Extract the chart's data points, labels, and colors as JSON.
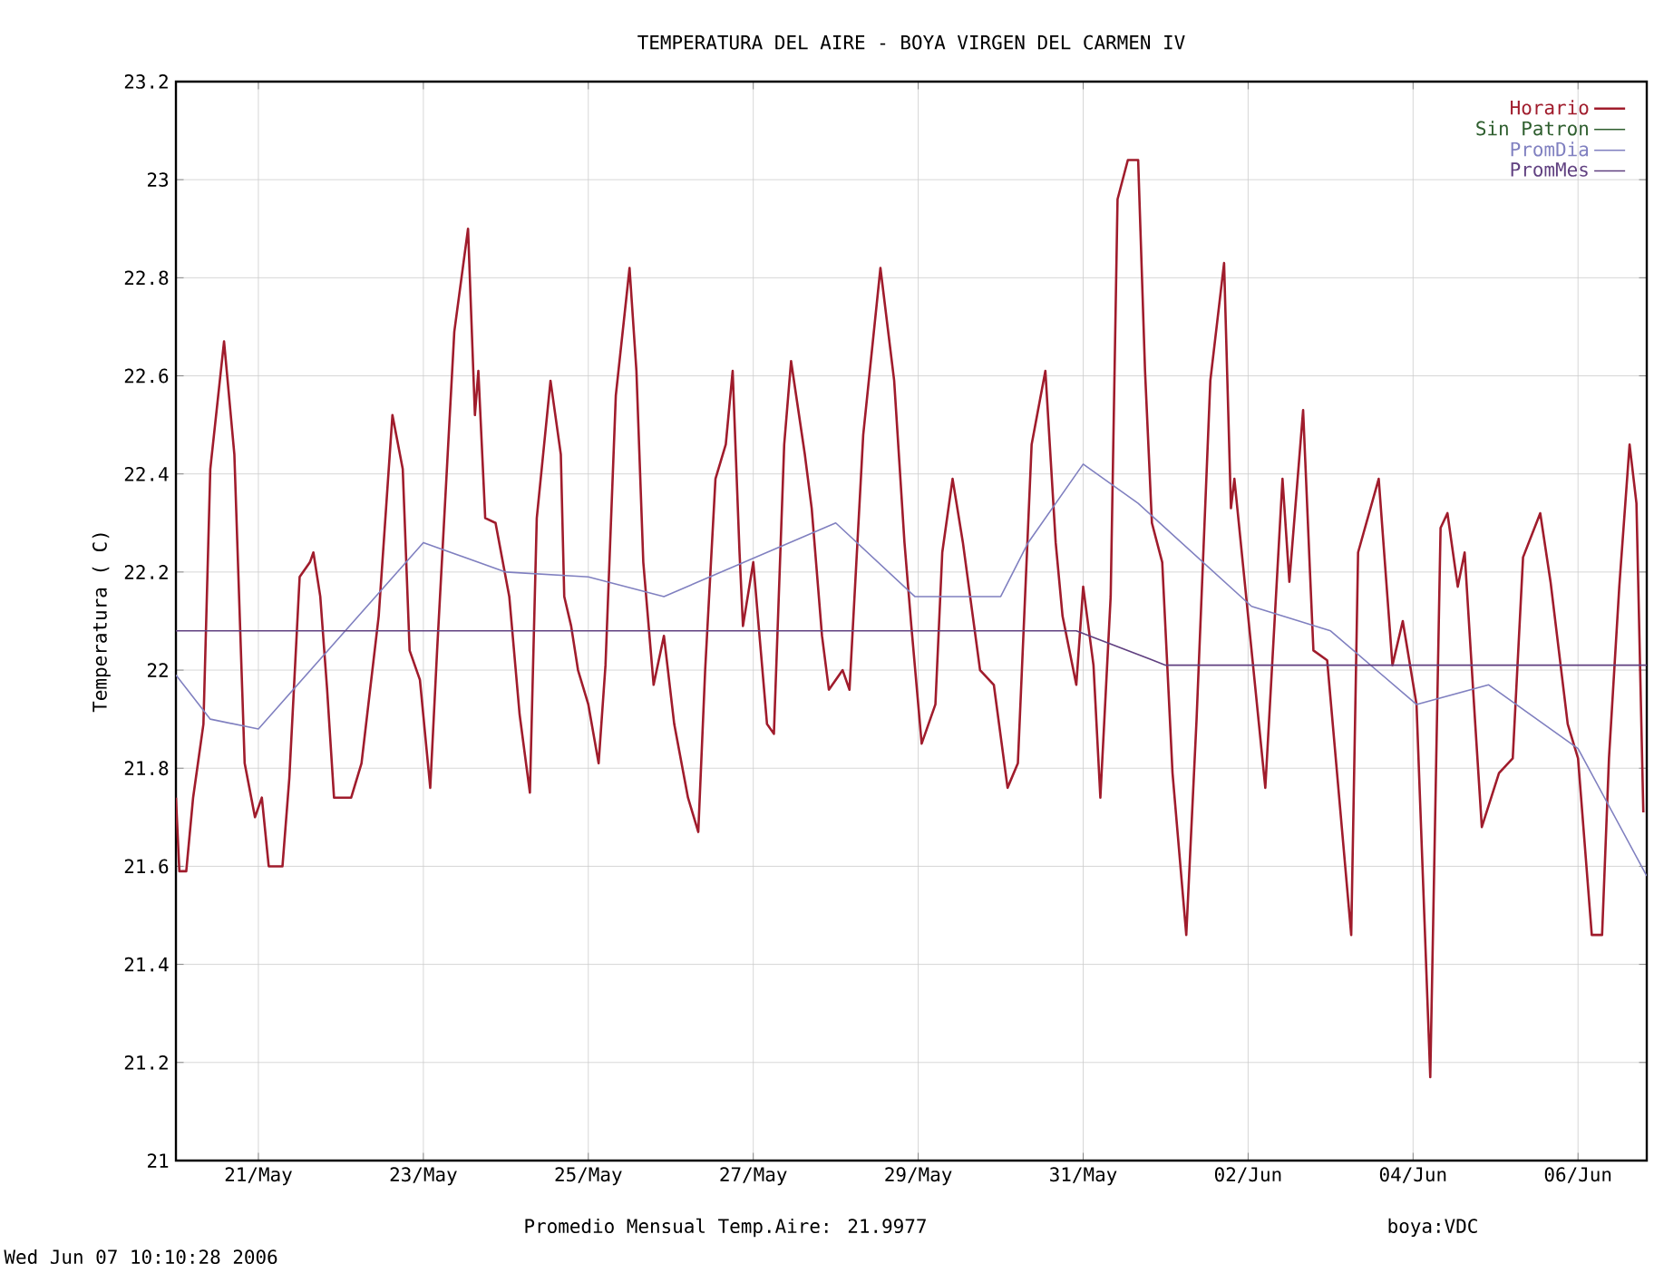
{
  "chart_data": {
    "type": "line",
    "title": "TEMPERATURA DEL AIRE - BOYA VIRGEN DEL CARMEN IV",
    "ylabel": "Temperatura ( C)",
    "xlim": [
      "2006-05-20T00:00",
      "2006-06-06T20:00"
    ],
    "xticks": [
      {
        "value": "2006-05-21T00:00",
        "label": "21/May"
      },
      {
        "value": "2006-05-23T00:00",
        "label": "23/May"
      },
      {
        "value": "2006-05-25T00:00",
        "label": "25/May"
      },
      {
        "value": "2006-05-27T00:00",
        "label": "27/May"
      },
      {
        "value": "2006-05-29T00:00",
        "label": "29/May"
      },
      {
        "value": "2006-05-31T00:00",
        "label": "31/May"
      },
      {
        "value": "2006-06-02T00:00",
        "label": "02/Jun"
      },
      {
        "value": "2006-06-04T00:00",
        "label": "04/Jun"
      },
      {
        "value": "2006-06-06T00:00",
        "label": "06/Jun"
      }
    ],
    "ylim": [
      21,
      23.2
    ],
    "yticks": [
      21,
      21.2,
      21.4,
      21.6,
      21.8,
      22,
      22.2,
      22.4,
      22.6,
      22.8,
      23,
      23.2
    ],
    "grid": true,
    "legend": "top right",
    "annotations": [
      "Promedio Mensual Temp.Aire: 21.9977",
      "boya:VDC",
      "Wed Jun 07 10:10:28 2006"
    ],
    "series": [
      {
        "name": "Horario",
        "color": "#a01c2c",
        "x": [
          "2006-05-20T00:00",
          "2006-05-20T01:00",
          "2006-05-20T03:00",
          "2006-05-20T05:00",
          "2006-05-20T08:00",
          "2006-05-20T10:00",
          "2006-05-20T14:00",
          "2006-05-20T17:00",
          "2006-05-20T20:00",
          "2006-05-20T23:00",
          "2006-05-21T01:00",
          "2006-05-21T03:00",
          "2006-05-21T07:00",
          "2006-05-21T09:00",
          "2006-05-21T12:00",
          "2006-05-21T15:00",
          "2006-05-21T16:00",
          "2006-05-21T18:00",
          "2006-05-21T20:00",
          "2006-05-21T22:00",
          "2006-05-22T03:00",
          "2006-05-22T06:00",
          "2006-05-22T11:00",
          "2006-05-22T15:00",
          "2006-05-22T18:00",
          "2006-05-22T20:00",
          "2006-05-22T23:00",
          "2006-05-23T02:00",
          "2006-05-23T04:00",
          "2006-05-23T09:00",
          "2006-05-23T13:00",
          "2006-05-23T15:00",
          "2006-05-23T16:00",
          "2006-05-23T18:00",
          "2006-05-23T21:00",
          "2006-05-24T01:00",
          "2006-05-24T04:00",
          "2006-05-24T07:00",
          "2006-05-24T09:00",
          "2006-05-24T13:00",
          "2006-05-24T16:00",
          "2006-05-24T17:00",
          "2006-05-24T19:00",
          "2006-05-24T21:00",
          "2006-05-25T00:00",
          "2006-05-25T03:00",
          "2006-05-25T05:00",
          "2006-05-25T08:00",
          "2006-05-25T12:00",
          "2006-05-25T14:00",
          "2006-05-25T16:00",
          "2006-05-25T19:00",
          "2006-05-25T22:00",
          "2006-05-26T01:00",
          "2006-05-26T05:00",
          "2006-05-26T08:00",
          "2006-05-26T10:00",
          "2006-05-26T13:00",
          "2006-05-26T16:00",
          "2006-05-26T18:00",
          "2006-05-26T20:00",
          "2006-05-26T21:00",
          "2006-05-27T00:00",
          "2006-05-27T04:00",
          "2006-05-27T06:00",
          "2006-05-27T09:00",
          "2006-05-27T11:00",
          "2006-05-27T15:00",
          "2006-05-27T17:00",
          "2006-05-27T20:00",
          "2006-05-27T22:00",
          "2006-05-28T02:00",
          "2006-05-28T04:00",
          "2006-05-28T08:00",
          "2006-05-28T13:00",
          "2006-05-28T17:00",
          "2006-05-28T20:00",
          "2006-05-28T22:00",
          "2006-05-29T01:00",
          "2006-05-29T05:00",
          "2006-05-29T07:00",
          "2006-05-29T10:00",
          "2006-05-29T13:00",
          "2006-05-29T18:00",
          "2006-05-29T22:00",
          "2006-05-30T02:00",
          "2006-05-30T05:00",
          "2006-05-30T09:00",
          "2006-05-30T13:00",
          "2006-05-30T16:00",
          "2006-05-30T18:00",
          "2006-05-30T22:00",
          "2006-05-31T00:00",
          "2006-05-31T03:00",
          "2006-05-31T05:00",
          "2006-05-31T08:00",
          "2006-05-31T10:00",
          "2006-05-31T13:00",
          "2006-05-31T16:00",
          "2006-05-31T18:00",
          "2006-05-31T20:00",
          "2006-05-31T23:00",
          "2006-06-01T02:00",
          "2006-06-01T06:00",
          "2006-06-01T09:00",
          "2006-06-01T13:00",
          "2006-06-01T17:00",
          "2006-06-01T19:00",
          "2006-06-01T20:00",
          "2006-06-02T00:00",
          "2006-06-02T05:00",
          "2006-06-02T10:00",
          "2006-06-02T12:00",
          "2006-06-02T16:00",
          "2006-06-02T18:00",
          "2006-06-02T19:00",
          "2006-06-02T23:00",
          "2006-06-03T06:00",
          "2006-06-03T08:00",
          "2006-06-03T14:00",
          "2006-06-03T18:00",
          "2006-06-03T21:00",
          "2006-06-04T01:00",
          "2006-06-04T05:00",
          "2006-06-04T08:00",
          "2006-06-04T10:00",
          "2006-06-04T13:00",
          "2006-06-04T15:00",
          "2006-06-04T18:00",
          "2006-06-04T20:00",
          "2006-06-05T01:00",
          "2006-06-05T05:00",
          "2006-06-05T08:00",
          "2006-06-05T13:00",
          "2006-06-05T16:00",
          "2006-06-05T21:00",
          "2006-06-06T00:00",
          "2006-06-06T04:00",
          "2006-06-06T07:00",
          "2006-06-06T09:00",
          "2006-06-06T12:00",
          "2006-06-06T15:00",
          "2006-06-06T17:00",
          "2006-06-06T19:00"
        ],
        "values": [
          21.74,
          21.59,
          21.59,
          21.74,
          21.89,
          22.41,
          22.67,
          22.44,
          21.81,
          21.7,
          21.74,
          21.6,
          21.6,
          21.78,
          22.19,
          22.22,
          22.24,
          22.15,
          21.96,
          21.74,
          21.74,
          21.81,
          22.11,
          22.52,
          22.41,
          22.04,
          21.98,
          21.76,
          22.04,
          22.69,
          22.9,
          22.52,
          22.61,
          22.31,
          22.3,
          22.15,
          21.91,
          21.75,
          22.31,
          22.59,
          22.44,
          22.15,
          22.09,
          22.0,
          21.93,
          21.81,
          22.01,
          22.56,
          22.82,
          22.61,
          22.22,
          21.97,
          22.07,
          21.89,
          21.74,
          21.67,
          22.0,
          22.39,
          22.46,
          22.61,
          22.24,
          22.09,
          22.22,
          21.89,
          21.87,
          22.46,
          22.63,
          22.44,
          22.33,
          22.07,
          21.96,
          22.0,
          21.96,
          22.48,
          22.82,
          22.59,
          22.26,
          22.09,
          21.85,
          21.93,
          22.24,
          22.39,
          22.26,
          22.0,
          21.97,
          21.76,
          21.81,
          22.46,
          22.61,
          22.26,
          22.11,
          21.97,
          22.17,
          22.01,
          21.74,
          22.15,
          22.96,
          23.04,
          23.04,
          22.61,
          22.3,
          22.22,
          21.79,
          21.46,
          21.9,
          22.59,
          22.83,
          22.33,
          22.39,
          22.11,
          21.76,
          22.39,
          22.18,
          22.53,
          22.2,
          22.04,
          22.02,
          21.46,
          22.24,
          22.39,
          22.01,
          22.1,
          21.93,
          21.17,
          22.29,
          22.32,
          22.17,
          22.24,
          21.9,
          21.68,
          21.79,
          21.82,
          22.23,
          22.32,
          22.18,
          21.89,
          21.82,
          21.46,
          21.46,
          21.82,
          22.17,
          22.46,
          22.34,
          21.71
        ]
      },
      {
        "name": "Sin Patron",
        "color": "#2e5e2e"
      },
      {
        "name": "PromDia",
        "color": "#8080c0",
        "x": [
          "2006-05-20T00:00",
          "2006-05-20T10:00",
          "2006-05-21T00:00",
          "2006-05-23T00:00",
          "2006-05-24T00:00",
          "2006-05-25T00:00",
          "2006-05-25T22:00",
          "2006-05-28T00:00",
          "2006-05-28T23:00",
          "2006-05-30T00:00",
          "2006-05-30T08:00",
          "2006-05-31T00:00",
          "2006-05-31T16:00",
          "2006-06-02T01:00",
          "2006-06-03T00:00",
          "2006-06-04T01:00",
          "2006-06-04T22:00",
          "2006-06-06T00:00",
          "2006-06-06T20:00"
        ],
        "values": [
          21.99,
          21.9,
          21.88,
          22.26,
          22.2,
          22.19,
          22.15,
          22.3,
          22.15,
          22.15,
          22.26,
          22.42,
          22.34,
          22.13,
          22.08,
          21.93,
          21.97,
          21.84,
          21.58
        ]
      },
      {
        "name": "PromMes",
        "color": "#604080",
        "x": [
          "2006-05-20T00:00",
          "2006-05-30T22:00",
          "2006-06-01T00:00",
          "2006-06-06T20:00"
        ],
        "values": [
          22.08,
          22.08,
          22.01,
          22.01
        ]
      }
    ]
  }
}
